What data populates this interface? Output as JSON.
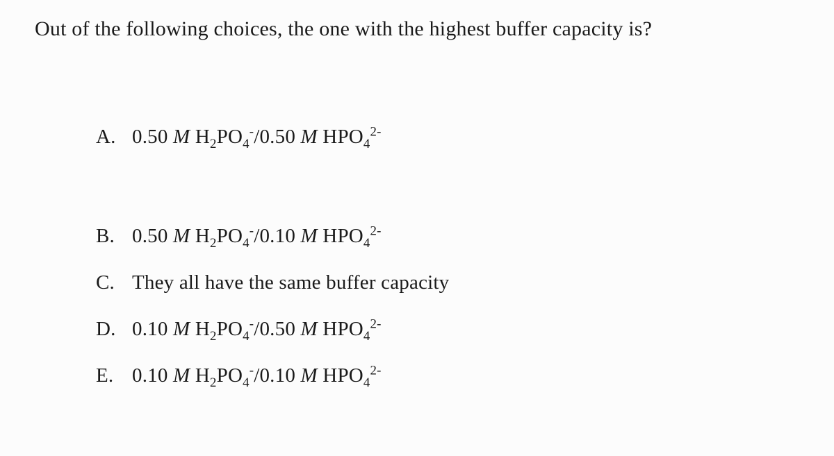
{
  "background_color": "#fcfcfc",
  "text_color": "#1a1a1a",
  "font_family": "Georgia, 'Times New Roman', serif",
  "question_fontsize": 30,
  "choice_fontsize": 29,
  "question": "Out of the following choices, the one with the highest buffer capacity is?",
  "choices": [
    {
      "letter": "A.",
      "conc1": "0.50",
      "conc2": "0.50",
      "is_formula": true,
      "spacing_after": "large"
    },
    {
      "letter": "B.",
      "conc1": "0.50",
      "conc2": "0.10",
      "is_formula": true,
      "spacing_after": "normal"
    },
    {
      "letter": "C.",
      "text": "They all have the same buffer capacity",
      "is_formula": false,
      "spacing_after": "normal"
    },
    {
      "letter": "D.",
      "conc1": "0.10",
      "conc2": "0.50",
      "is_formula": true,
      "spacing_after": "normal"
    },
    {
      "letter": "E.",
      "conc1": "0.10",
      "conc2": "0.10",
      "is_formula": true,
      "spacing_after": "normal"
    }
  ],
  "formula": {
    "unit": "M",
    "acid_prefix": "H",
    "acid_sub1": "2",
    "acid_mid": "PO",
    "acid_sub2": "4",
    "acid_charge": "-",
    "sep": "/",
    "base_prefix": "HPO",
    "base_sub": "4",
    "base_charge": "2-"
  }
}
